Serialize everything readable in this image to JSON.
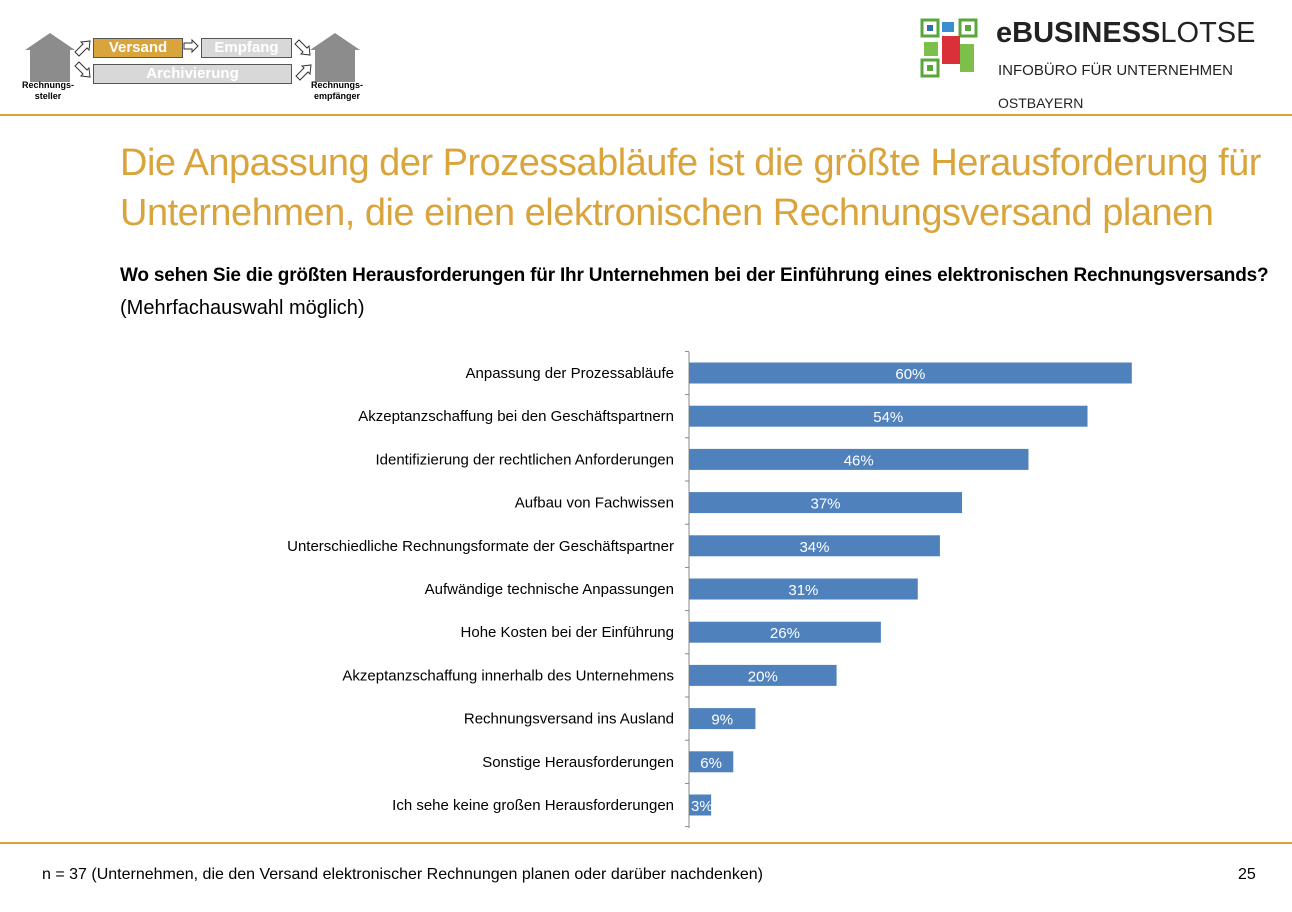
{
  "header": {
    "process": {
      "versand": "Versand",
      "empfang": "Empfang",
      "archivierung": "Archivierung",
      "sender": "Rechnungs-\nsteller",
      "receiver": "Rechnungs-\nempfänger"
    },
    "logo": {
      "brand_bold": "eBUSINESS",
      "brand_light": "LOTSE",
      "line1": "INFOBÜRO FÜR UNTERNEHMEN",
      "line2": "OSTBAYERN"
    }
  },
  "title": "Die Anpassung der Prozessabläufe ist die größte Herausforderung für Unternehmen, die einen elektronischen Rechnungsversand planen",
  "question": "Wo sehen Sie die größten Herausforderungen für Ihr Unternehmen bei der Einführung eines elektronischen Rechnungsversands?",
  "hint": "(Mehrfachauswahl möglich)",
  "footnote": "n = 37 (Unternehmen, die den Versand elektronischer Rechnungen planen oder darüber nachdenken)",
  "page_number": "25",
  "colors": {
    "accent": "#d9a43c",
    "bar": "#4f81bd"
  },
  "chart_data": {
    "type": "bar",
    "orientation": "horizontal",
    "categories": [
      "Anpassung der Prozessabläufe",
      "Akzeptanzschaffung bei den Geschäftspartnern",
      "Identifizierung der rechtlichen Anforderungen",
      "Aufbau von Fachwissen",
      "Unterschiedliche Rechnungsformate der Geschäftspartner",
      "Aufwändige technische Anpassungen",
      "Hohe Kosten bei der Einführung",
      "Akzeptanzschaffung innerhalb des Unternehmens",
      "Rechnungsversand ins Ausland",
      "Sonstige Herausforderungen",
      "Ich sehe keine großen Herausforderungen"
    ],
    "values": [
      60,
      54,
      46,
      37,
      34,
      31,
      26,
      20,
      9,
      6,
      3
    ],
    "unit": "%",
    "xlim": [
      0,
      100
    ],
    "grid": false,
    "legend": "none"
  }
}
